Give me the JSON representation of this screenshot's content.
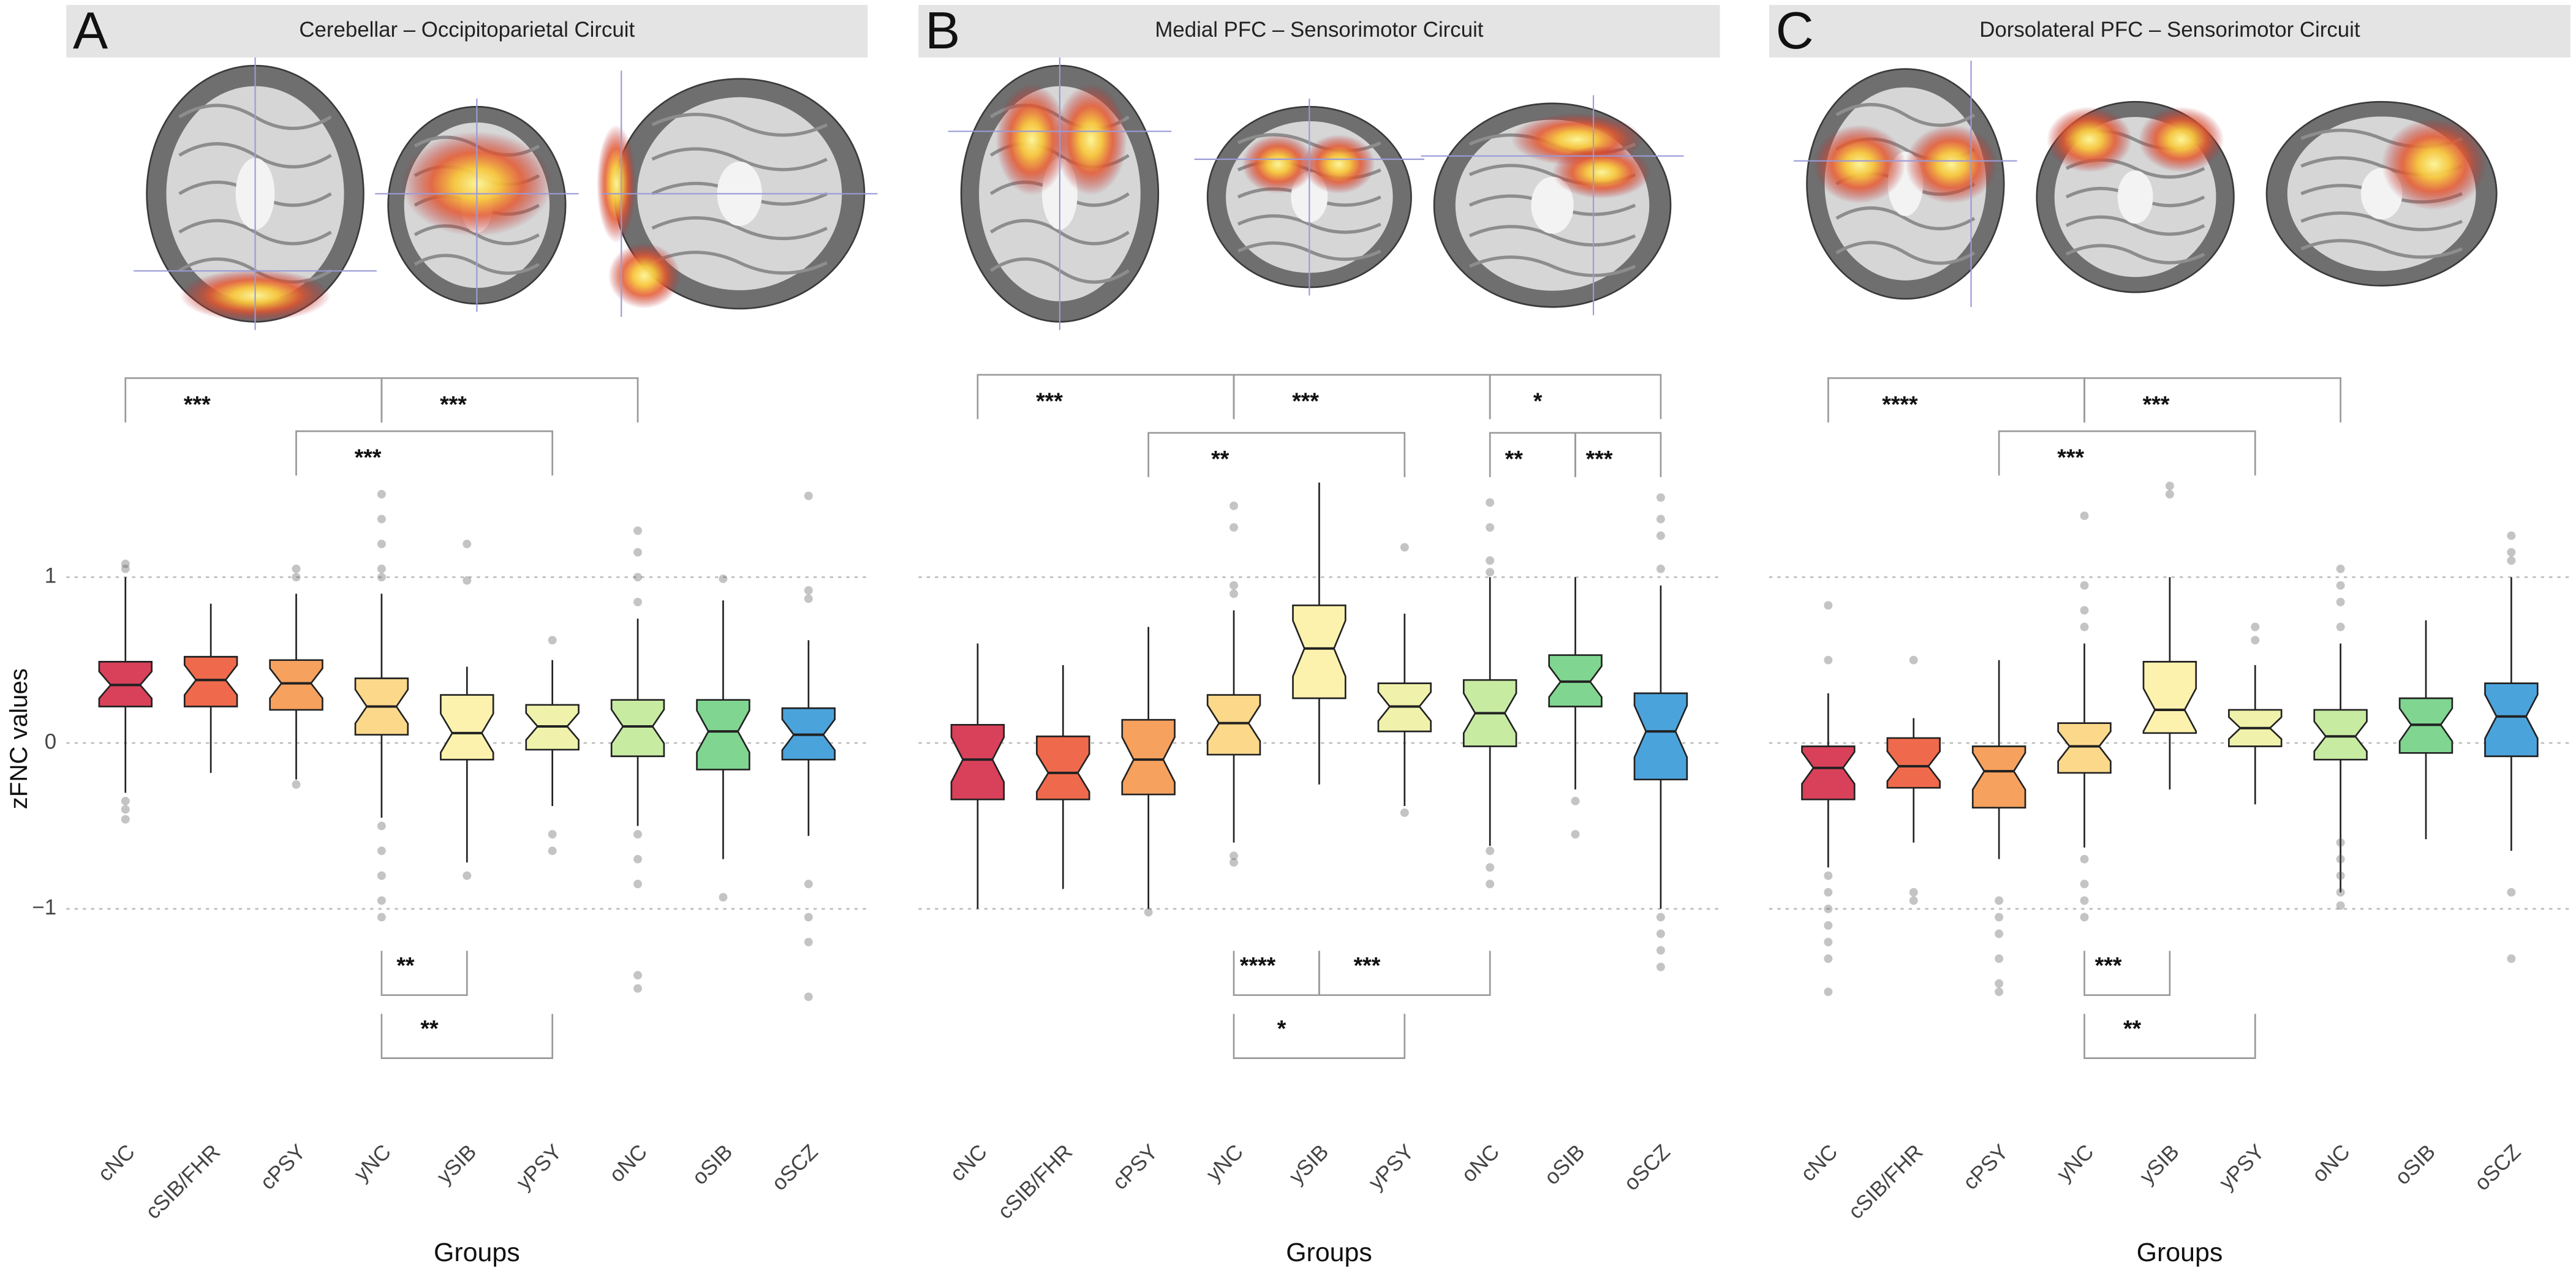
{
  "chart_data": [
    {
      "type": "box",
      "panel": "A",
      "title": "Cerebellar – Occipitoparietal Circuit",
      "ylabel": "zFNC values",
      "xlabel": "Groups",
      "ytick_labels": true,
      "categories": [
        "cNC",
        "cSIB/FHR",
        "cPSY",
        "yNC",
        "ySIB",
        "yPSY",
        "oNC",
        "oSIB",
        "oSCZ"
      ],
      "colors": [
        "#d9415a",
        "#ef6a4c",
        "#f6a15e",
        "#fcd98a",
        "#fdf2ad",
        "#f0f2ab",
        "#c8eba2",
        "#80d690",
        "#4ba3dc"
      ],
      "ylim": [
        -2.35,
        2.5
      ],
      "yticks": [
        {
          "value": -1,
          "label": "−1"
        },
        0,
        1
      ],
      "grid": true,
      "boxes": [
        {
          "min": -0.3,
          "q1": 0.22,
          "median": 0.35,
          "q3": 0.49,
          "max": 1.0,
          "outliers": [
            1.08,
            1.05,
            -0.35,
            -0.4,
            -0.46
          ]
        },
        {
          "min": -0.18,
          "q1": 0.22,
          "median": 0.38,
          "q3": 0.52,
          "max": 0.84,
          "outliers": []
        },
        {
          "min": -0.22,
          "q1": 0.2,
          "median": 0.36,
          "q3": 0.5,
          "max": 0.9,
          "outliers": [
            1.05,
            1.0,
            -0.25
          ]
        },
        {
          "min": -0.45,
          "q1": 0.05,
          "median": 0.22,
          "q3": 0.39,
          "max": 0.9,
          "outliers": [
            1.5,
            1.35,
            1.2,
            1.05,
            1.0,
            -0.5,
            -0.65,
            -0.8,
            -0.95,
            -1.05
          ]
        },
        {
          "min": -0.72,
          "q1": -0.1,
          "median": 0.06,
          "q3": 0.29,
          "max": 0.46,
          "outliers": [
            1.2,
            0.98,
            -0.8
          ]
        },
        {
          "min": -0.38,
          "q1": -0.04,
          "median": 0.1,
          "q3": 0.23,
          "max": 0.5,
          "outliers": [
            0.62,
            -0.55,
            -0.65
          ]
        },
        {
          "min": -0.5,
          "q1": -0.08,
          "median": 0.1,
          "q3": 0.26,
          "max": 0.75,
          "outliers": [
            1.28,
            1.15,
            1.0,
            0.85,
            -0.55,
            -0.7,
            -0.85,
            -1.4,
            -1.48
          ]
        },
        {
          "min": -0.7,
          "q1": -0.16,
          "median": 0.07,
          "q3": 0.26,
          "max": 0.86,
          "outliers": [
            0.99,
            -0.93
          ]
        },
        {
          "min": -0.56,
          "q1": -0.1,
          "median": 0.05,
          "q3": 0.21,
          "max": 0.62,
          "outliers": [
            1.49,
            0.92,
            0.87,
            -0.85,
            -1.05,
            -1.2,
            -1.53
          ]
        }
      ],
      "brackets": [
        {
          "from": "cNC",
          "to": "yNC",
          "label": "***",
          "y": 2.2
        },
        {
          "from": "yNC",
          "to": "oNC",
          "label": "***",
          "y": 2.2
        },
        {
          "from": "cPSY",
          "to": "yPSY",
          "label": "***",
          "y": 1.88
        },
        {
          "from": "yNC",
          "to": "ySIB",
          "label": "**",
          "y": -1.52
        },
        {
          "from": "yNC",
          "to": "yPSY",
          "label": "**",
          "y": -1.9
        }
      ]
    },
    {
      "type": "box",
      "panel": "B",
      "title": "Medial PFC – Sensorimotor Circuit",
      "xlabel": "Groups",
      "ytick_labels": false,
      "categories": [
        "cNC",
        "cSIB/FHR",
        "cPSY",
        "yNC",
        "ySIB",
        "yPSY",
        "oNC",
        "oSIB",
        "oSCZ"
      ],
      "colors": [
        "#d9415a",
        "#ef6a4c",
        "#f6a15e",
        "#fcd98a",
        "#fdf2ad",
        "#f0f2ab",
        "#c8eba2",
        "#80d690",
        "#4ba3dc"
      ],
      "ylim": [
        -2.35,
        2.5
      ],
      "yticks": [
        {
          "value": -1,
          "label": "−1"
        },
        0,
        1
      ],
      "grid": true,
      "boxes": [
        {
          "min": -1.0,
          "q1": -0.34,
          "median": -0.1,
          "q3": 0.11,
          "max": 0.6,
          "outliers": []
        },
        {
          "min": -0.88,
          "q1": -0.34,
          "median": -0.18,
          "q3": 0.04,
          "max": 0.47,
          "outliers": []
        },
        {
          "min": -1.0,
          "q1": -0.31,
          "median": -0.1,
          "q3": 0.14,
          "max": 0.7,
          "outliers": [
            -1.02
          ]
        },
        {
          "min": -0.6,
          "q1": -0.07,
          "median": 0.12,
          "q3": 0.29,
          "max": 0.8,
          "outliers": [
            1.43,
            1.3,
            0.95,
            0.9,
            -0.68,
            -0.72
          ]
        },
        {
          "min": -0.25,
          "q1": 0.27,
          "median": 0.57,
          "q3": 0.83,
          "max": 1.57,
          "outliers": []
        },
        {
          "min": -0.38,
          "q1": 0.07,
          "median": 0.22,
          "q3": 0.36,
          "max": 0.78,
          "outliers": [
            1.18,
            -0.42
          ]
        },
        {
          "min": -0.62,
          "q1": -0.02,
          "median": 0.18,
          "q3": 0.38,
          "max": 1.0,
          "outliers": [
            1.45,
            1.3,
            1.1,
            1.03,
            -0.65,
            -0.75,
            -0.85
          ]
        },
        {
          "min": -0.28,
          "q1": 0.22,
          "median": 0.37,
          "q3": 0.53,
          "max": 1.0,
          "outliers": [
            -0.35,
            -0.55
          ]
        },
        {
          "min": -1.0,
          "q1": -0.22,
          "median": 0.07,
          "q3": 0.3,
          "max": 0.95,
          "outliers": [
            1.48,
            1.35,
            1.25,
            1.05,
            -1.05,
            -1.15,
            -1.25,
            -1.35
          ]
        }
      ],
      "brackets": [
        {
          "from": "cNC",
          "to": "yNC",
          "label": "***",
          "y": 2.22
        },
        {
          "from": "yNC",
          "to": "oNC",
          "label": "***",
          "y": 2.22
        },
        {
          "from": "oNC",
          "to": "oSCZ",
          "label": "*",
          "y": 2.22
        },
        {
          "from": "cPSY",
          "to": "yPSY",
          "label": "**",
          "y": 1.87
        },
        {
          "from": "oNC",
          "to": "oSIB",
          "label": "**",
          "y": 1.87
        },
        {
          "from": "oSIB",
          "to": "oSCZ",
          "label": "***",
          "y": 1.87
        },
        {
          "from": "yNC",
          "to": "ySIB",
          "label": "****",
          "y": -1.52
        },
        {
          "from": "ySIB",
          "to": "oNC",
          "label": "***",
          "y": -1.52
        },
        {
          "from": "yNC",
          "to": "yPSY",
          "label": "*",
          "y": -1.9
        }
      ]
    },
    {
      "type": "box",
      "panel": "C",
      "title": "Dorsolateral PFC – Sensorimotor Circuit",
      "xlabel": "Groups",
      "ytick_labels": false,
      "categories": [
        "cNC",
        "cSIB/FHR",
        "cPSY",
        "yNC",
        "ySIB",
        "yPSY",
        "oNC",
        "oSIB",
        "oSCZ"
      ],
      "colors": [
        "#d9415a",
        "#ef6a4c",
        "#f6a15e",
        "#fcd98a",
        "#fdf2ad",
        "#f0f2ab",
        "#c8eba2",
        "#80d690",
        "#4ba3dc"
      ],
      "ylim": [
        -2.35,
        2.5
      ],
      "yticks": [
        {
          "value": -1,
          "label": "−1"
        },
        0,
        1
      ],
      "grid": true,
      "boxes": [
        {
          "min": -0.75,
          "q1": -0.34,
          "median": -0.15,
          "q3": -0.02,
          "max": 0.3,
          "outliers": [
            0.83,
            0.5,
            -0.8,
            -0.9,
            -1.0,
            -1.1,
            -1.2,
            -1.3,
            -1.5
          ]
        },
        {
          "min": -0.6,
          "q1": -0.27,
          "median": -0.14,
          "q3": 0.03,
          "max": 0.15,
          "outliers": [
            0.5,
            -0.9,
            -0.95
          ]
        },
        {
          "min": -0.7,
          "q1": -0.39,
          "median": -0.17,
          "q3": -0.02,
          "max": 0.5,
          "outliers": [
            -0.95,
            -1.05,
            -1.15,
            -1.3,
            -1.45,
            -1.5
          ]
        },
        {
          "min": -0.63,
          "q1": -0.18,
          "median": -0.02,
          "q3": 0.12,
          "max": 0.6,
          "outliers": [
            1.37,
            0.95,
            0.8,
            0.7,
            -0.7,
            -0.85,
            -0.95,
            -1.05
          ]
        },
        {
          "min": -0.28,
          "q1": 0.06,
          "median": 0.2,
          "q3": 0.49,
          "max": 1.0,
          "outliers": [
            1.55,
            1.5
          ]
        },
        {
          "min": -0.37,
          "q1": -0.02,
          "median": 0.09,
          "q3": 0.2,
          "max": 0.47,
          "outliers": [
            0.7,
            0.62
          ]
        },
        {
          "min": -0.9,
          "q1": -0.1,
          "median": 0.04,
          "q3": 0.2,
          "max": 0.6,
          "outliers": [
            1.05,
            0.95,
            0.85,
            0.7,
            -0.6,
            -0.7,
            -0.8,
            -0.9,
            -0.98
          ]
        },
        {
          "min": -0.58,
          "q1": -0.06,
          "median": 0.11,
          "q3": 0.27,
          "max": 0.74,
          "outliers": []
        },
        {
          "min": -0.65,
          "q1": -0.08,
          "median": 0.16,
          "q3": 0.36,
          "max": 1.0,
          "outliers": [
            1.25,
            1.15,
            1.1,
            -0.9,
            -1.3
          ]
        }
      ],
      "brackets": [
        {
          "from": "cNC",
          "to": "yNC",
          "label": "****",
          "y": 2.2
        },
        {
          "from": "yNC",
          "to": "oNC",
          "label": "***",
          "y": 2.2
        },
        {
          "from": "cPSY",
          "to": "yPSY",
          "label": "***",
          "y": 1.88
        },
        {
          "from": "yNC",
          "to": "ySIB",
          "label": "***",
          "y": -1.52
        },
        {
          "from": "yNC",
          "to": "yPSY",
          "label": "**",
          "y": -1.9
        }
      ]
    }
  ]
}
